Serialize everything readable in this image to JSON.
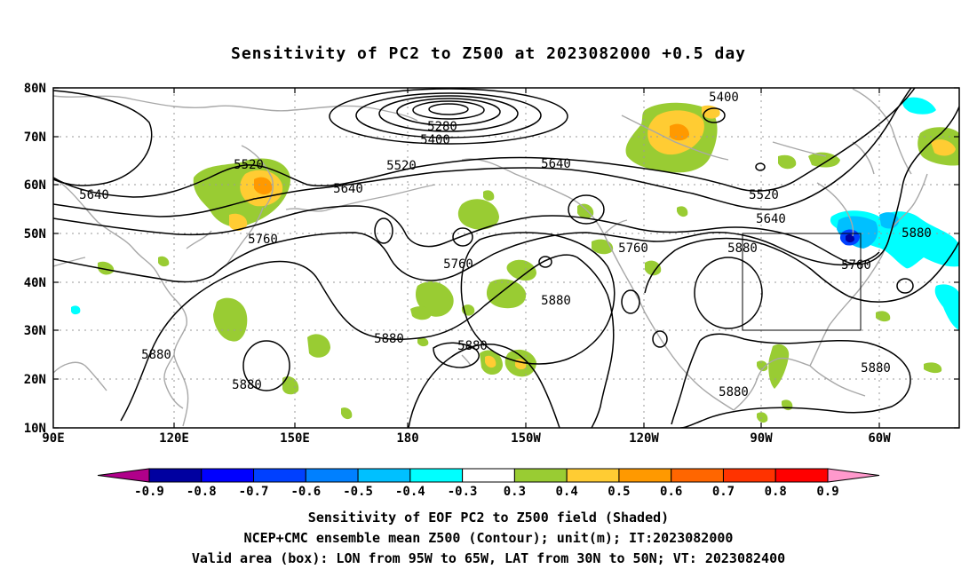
{
  "title": "Sensitivity of PC2 to Z500 at 2023082000 +0.5 day",
  "captions": [
    "Sensitivity of EOF PC2 to Z500 field (Shaded)",
    "NCEP+CMC ensemble mean Z500 (Contour); unit(m); IT:2023082000",
    "Valid area (box): LON from 95W to 65W, LAT from 30N to 50N; VT: 2023082400"
  ],
  "axes": {
    "lat_labels": [
      "80N",
      "70N",
      "60N",
      "50N",
      "40N",
      "30N",
      "20N",
      "10N"
    ],
    "lon_labels": [
      "90E",
      "120E",
      "150E",
      "180",
      "150W",
      "120W",
      "90W",
      "60W"
    ]
  },
  "colorbar": {
    "labels": [
      "-0.9",
      "-0.8",
      "-0.7",
      "-0.6",
      "-0.5",
      "-0.4",
      "-0.3",
      "0.3",
      "0.4",
      "0.5",
      "0.6",
      "0.7",
      "0.8",
      "0.9"
    ],
    "colors": [
      "#b0008a",
      "#0000a0",
      "#0000ff",
      "#0040ff",
      "#0080ff",
      "#00c0ff",
      "#00ffff",
      "#ffffff",
      "#99cc33",
      "#ffcc33",
      "#ff9900",
      "#ff6600",
      "#ff3300",
      "#ff0000",
      "#ff99cc"
    ]
  },
  "contour_labels": [
    "5280",
    "5400",
    "5400",
    "5520",
    "5520",
    "5520",
    "5640",
    "5640",
    "5640",
    "5640",
    "5760",
    "5760",
    "5760",
    "5760",
    "5880",
    "5880",
    "5880",
    "5880",
    "5880",
    "5880",
    "5880",
    "5880",
    "5880"
  ],
  "valid_box": {
    "lon_range": [
      "95W",
      "65W"
    ],
    "lat_range": [
      "30N",
      "50N"
    ]
  },
  "units": "m",
  "init_time": "2023082000",
  "valid_time": "2023082400"
}
